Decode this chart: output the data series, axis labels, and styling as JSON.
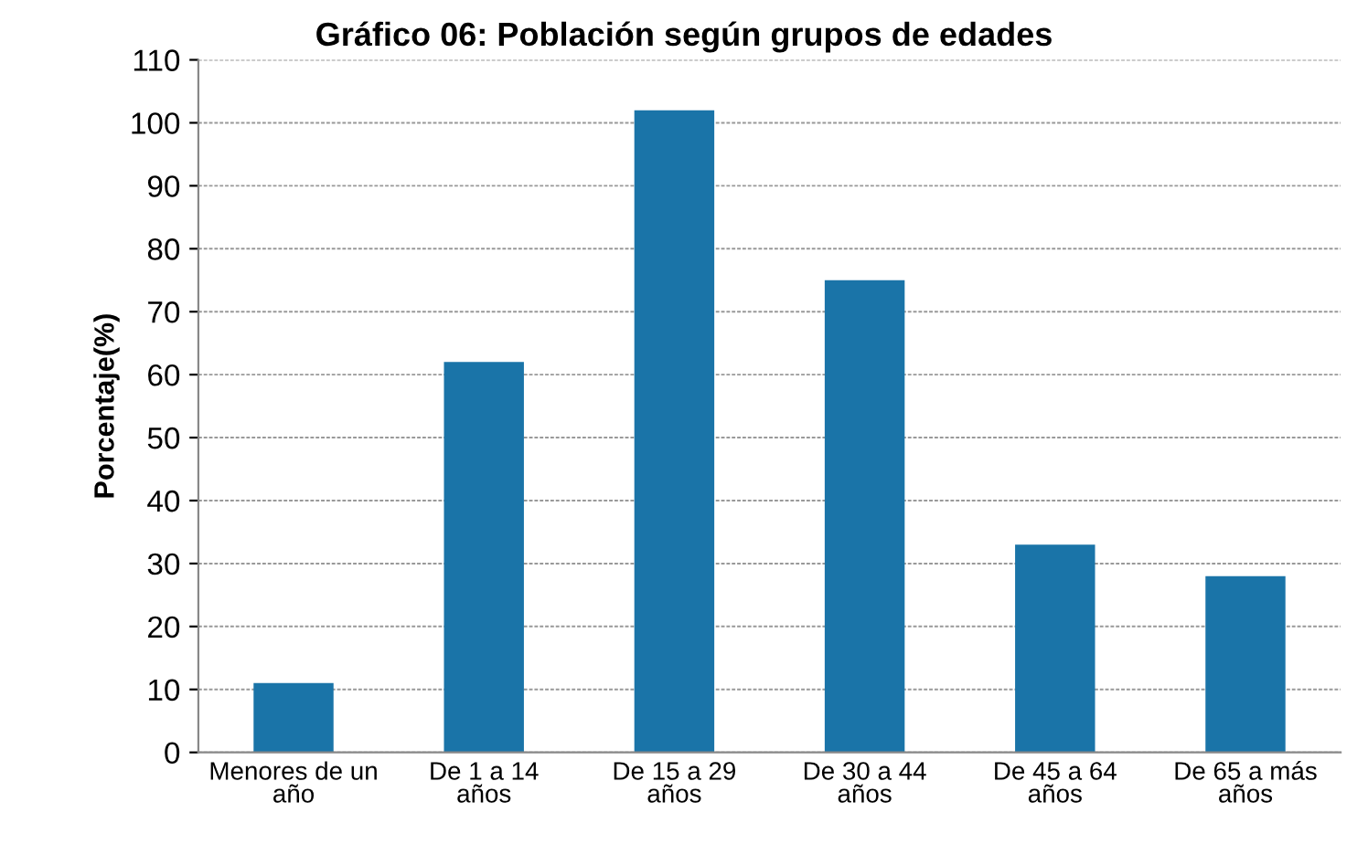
{
  "chart_data": {
    "type": "bar",
    "title": "Gráfico 06: Población según grupos de edades",
    "ylabel": "Porcentaje(%)",
    "categories": [
      "Menores de un\naño",
      "De 1 a 14\naños",
      "De 15 a 29\naños",
      "De 30 a 44\naños",
      "De 45 a 64\naños",
      "De 65 a más\naños"
    ],
    "values": [
      11,
      62,
      102,
      75,
      33,
      28
    ],
    "color": "#1a74a8",
    "ylim": [
      0,
      110
    ],
    "yticks": [
      0,
      10,
      20,
      30,
      40,
      50,
      60,
      70,
      80,
      90,
      100,
      110
    ],
    "grid": "y"
  }
}
